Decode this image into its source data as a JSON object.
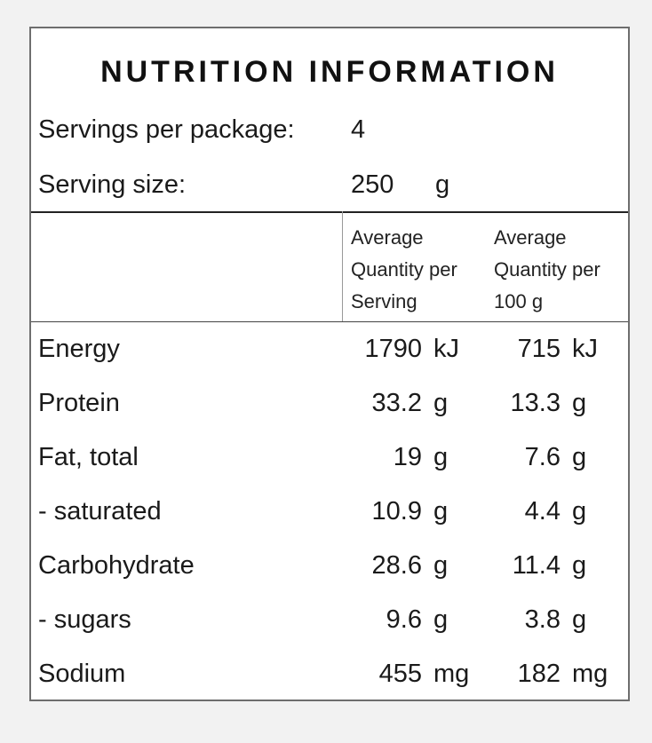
{
  "title": "NUTRITION INFORMATION",
  "servings_per_package": {
    "label": "Servings per package:",
    "value": "4"
  },
  "serving_size": {
    "label": "Serving size:",
    "value": "250",
    "unit": "g"
  },
  "header": {
    "col1": [
      "Average",
      "Quantity per",
      "Serving"
    ],
    "col2": [
      "Average",
      "Quantity per",
      "100 g"
    ]
  },
  "rows": [
    {
      "name": "Energy",
      "serving": "1790",
      "serving_unit": "kJ",
      "per100": "715",
      "per100_unit": "kJ"
    },
    {
      "name": "Protein",
      "serving": "33.2",
      "serving_unit": "g",
      "per100": "13.3",
      "per100_unit": "g"
    },
    {
      "name": "Fat, total",
      "serving": "19",
      "serving_unit": "g",
      "per100": "7.6",
      "per100_unit": "g"
    },
    {
      "name": "- saturated",
      "serving": "10.9",
      "serving_unit": "g",
      "per100": "4.4",
      "per100_unit": "g"
    },
    {
      "name": "Carbohydrate",
      "serving": "28.6",
      "serving_unit": "g",
      "per100": "11.4",
      "per100_unit": "g"
    },
    {
      "name": "- sugars",
      "serving": "9.6",
      "serving_unit": "g",
      "per100": "3.8",
      "per100_unit": "g"
    },
    {
      "name": "Sodium",
      "serving": "455",
      "serving_unit": "mg",
      "per100": "182",
      "per100_unit": "mg"
    }
  ]
}
